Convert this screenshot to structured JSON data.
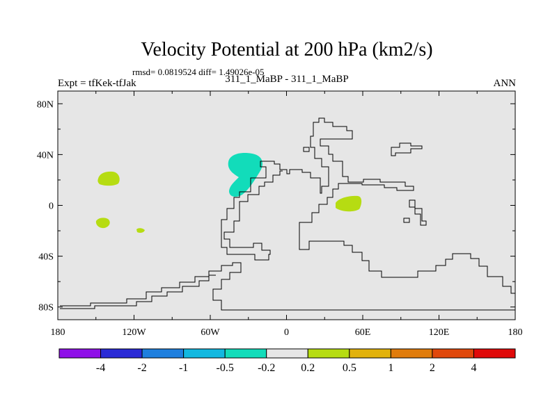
{
  "chart_data": {
    "type": "contour-map",
    "title": "Velocity Potential at 200 hPa (km2/s)",
    "subtitle": "rmsd= 0.0819524 diff= 1.49026e-05",
    "left_label": "Expt = tfKek-tfJak",
    "center_label": "311_1_MaBP - 311_1_MaBP",
    "right_label": "ANN",
    "x_ticks": [
      "180",
      "120W",
      "60W",
      "0",
      "60E",
      "120E",
      "180"
    ],
    "x_values": [
      -180,
      -120,
      -60,
      0,
      60,
      120,
      180
    ],
    "y_ticks": [
      "80N",
      "40N",
      "0",
      "40S",
      "80S"
    ],
    "y_values": [
      80,
      40,
      0,
      -40,
      -80
    ],
    "xlim": [
      -180,
      180
    ],
    "ylim": [
      -90,
      90
    ],
    "colorbar": {
      "labels": [
        "-4",
        "-2",
        "-1",
        "-0.5",
        "-0.2",
        "0.2",
        "0.5",
        "1",
        "2",
        "4"
      ],
      "colors": [
        "#8f10e8",
        "#2a2ad6",
        "#1e7fde",
        "#12b8e0",
        "#12dcba",
        "#e6e6e6",
        "#b6dc12",
        "#e2b20c",
        "#e07c0c",
        "#e0480c",
        "#e00a0a"
      ]
    },
    "regions": [
      {
        "level": "-0.5 to -0.2",
        "color": "#12dcba",
        "description": "negative anomaly over tropical/subtropical Atlantic near 30W"
      },
      {
        "level": "0.2 to 0.5",
        "color": "#b6dc12",
        "description": "positive anomaly Arabian Sea / western Indian Ocean"
      },
      {
        "level": "0.2 to 0.5",
        "color": "#b6dc12",
        "description": "positive anomaly central Pacific ~20N"
      },
      {
        "level": "0.2 to 0.5",
        "color": "#b6dc12",
        "description": "positive anomaly central Pacific ~15S"
      },
      {
        "level": "0.2 to 0.5",
        "color": "#b6dc12",
        "description": "small positive anomaly eastern Pacific ~20S"
      }
    ]
  }
}
